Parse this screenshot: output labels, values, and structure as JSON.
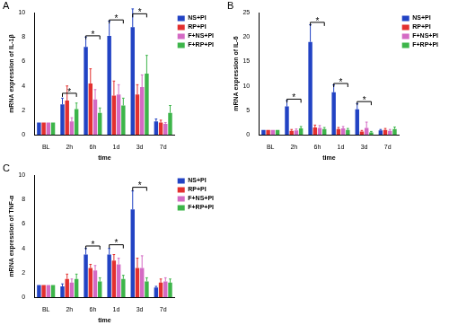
{
  "chart_data": [
    {
      "type": "bar",
      "panel": "A",
      "x_label": "time",
      "y_label": "mRNA expression of IL-1β",
      "categories": [
        "BL",
        "2h",
        "6h",
        "1d",
        "3d",
        "7d"
      ],
      "series": [
        {
          "name": "NS+PI",
          "color": "#2243c4",
          "values": [
            1,
            2.5,
            7.2,
            8.1,
            8.8,
            1.1
          ],
          "errors": [
            0,
            0.5,
            0.8,
            1.2,
            1.5,
            0.2
          ]
        },
        {
          "name": "RP+PI",
          "color": "#e3302f",
          "values": [
            1,
            2.8,
            4.2,
            3.2,
            3.3,
            1.0
          ],
          "errors": [
            0,
            1.2,
            1.2,
            1.2,
            0.8,
            0.2
          ]
        },
        {
          "name": "F+NS+PI",
          "color": "#d46ac4",
          "values": [
            1,
            1.1,
            2.9,
            3.3,
            3.9,
            0.9
          ],
          "errors": [
            0,
            0.3,
            0.8,
            0.8,
            1.0,
            0.1
          ]
        },
        {
          "name": "F+RP+PI",
          "color": "#3db54a",
          "values": [
            1,
            2.1,
            1.8,
            2.4,
            5.0,
            1.8
          ],
          "errors": [
            0,
            0.5,
            0.4,
            0.6,
            1.5,
            0.6
          ]
        }
      ],
      "ylim": [
        0,
        10
      ],
      "yticks": [
        0,
        2,
        4,
        6,
        8,
        10
      ],
      "grid": false,
      "legend": "right",
      "annotations": [
        {
          "category": "2h",
          "y": 3.4,
          "text": "*"
        },
        {
          "category": "6h",
          "y": 8.1,
          "text": "*"
        },
        {
          "category": "1d",
          "y": 9.4,
          "text": "*"
        },
        {
          "category": "3d",
          "y": 9.9,
          "text": "*"
        }
      ]
    },
    {
      "type": "bar",
      "panel": "B",
      "x_label": "time",
      "y_label": "mRNA expression of IL-6",
      "categories": [
        "BL",
        "2h",
        "6h",
        "1d",
        "3d",
        "7d"
      ],
      "series": [
        {
          "name": "NS+PI",
          "color": "#2243c4",
          "values": [
            1,
            5.8,
            19,
            8.7,
            5.2,
            0.9
          ],
          "errors": [
            0,
            1.2,
            3.5,
            1.5,
            1.2,
            0.2
          ]
        },
        {
          "name": "RP+PI",
          "color": "#e3302f",
          "values": [
            1,
            0.8,
            1.5,
            1.2,
            0.7,
            1.0
          ],
          "errors": [
            0,
            0.3,
            0.5,
            0.3,
            0.2,
            0.3
          ]
        },
        {
          "name": "F+NS+PI",
          "color": "#d46ac4",
          "values": [
            1,
            0.9,
            1.4,
            1.3,
            1.4,
            0.8
          ],
          "errors": [
            0,
            0.3,
            0.5,
            0.4,
            1.2,
            0.3
          ]
        },
        {
          "name": "F+RP+PI",
          "color": "#3db54a",
          "values": [
            1,
            1.3,
            1.2,
            1.0,
            0.5,
            1.2
          ],
          "errors": [
            0,
            0.4,
            0.3,
            0.3,
            0.2,
            0.4
          ]
        }
      ],
      "ylim": [
        0,
        25
      ],
      "yticks": [
        0,
        5,
        10,
        15,
        20,
        25
      ],
      "grid": false,
      "legend": "right",
      "annotations": [
        {
          "category": "2h",
          "y": 7.3,
          "text": "*"
        },
        {
          "category": "6h",
          "y": 23,
          "text": "*"
        },
        {
          "category": "1d",
          "y": 10.5,
          "text": "*"
        },
        {
          "category": "3d",
          "y": 6.8,
          "text": "*"
        }
      ]
    },
    {
      "type": "bar",
      "panel": "C",
      "x_label": "time",
      "y_label": "mRNA expression of TNF-α",
      "categories": [
        "BL",
        "2h",
        "6h",
        "1d",
        "3d",
        "7d"
      ],
      "series": [
        {
          "name": "NS+PI",
          "color": "#2243c4",
          "values": [
            1,
            0.9,
            3.5,
            3.5,
            7.2,
            0.8
          ],
          "errors": [
            0,
            0.2,
            0.5,
            0.5,
            1.5,
            0.1
          ]
        },
        {
          "name": "RP+PI",
          "color": "#e3302f",
          "values": [
            1,
            1.5,
            2.4,
            3.0,
            2.4,
            1.2
          ],
          "errors": [
            0,
            0.4,
            0.3,
            0.5,
            0.8,
            0.3
          ]
        },
        {
          "name": "F+NS+PI",
          "color": "#d46ac4",
          "values": [
            1,
            1.2,
            2.2,
            2.7,
            2.4,
            1.3
          ],
          "errors": [
            0,
            0.3,
            0.4,
            0.5,
            1.0,
            0.3
          ]
        },
        {
          "name": "F+RP+PI",
          "color": "#3db54a",
          "values": [
            1,
            1.5,
            1.3,
            1.5,
            1.3,
            1.2
          ],
          "errors": [
            0,
            0.4,
            0.3,
            0.3,
            0.3,
            0.3
          ]
        }
      ],
      "ylim": [
        0,
        10
      ],
      "yticks": [
        0,
        2,
        4,
        6,
        8,
        10
      ],
      "grid": false,
      "legend": "right",
      "annotations": [
        {
          "category": "6h",
          "y": 4.2,
          "text": "*"
        },
        {
          "category": "1d",
          "y": 4.3,
          "text": "*"
        },
        {
          "category": "3d",
          "y": 9.0,
          "text": "*"
        }
      ]
    }
  ]
}
